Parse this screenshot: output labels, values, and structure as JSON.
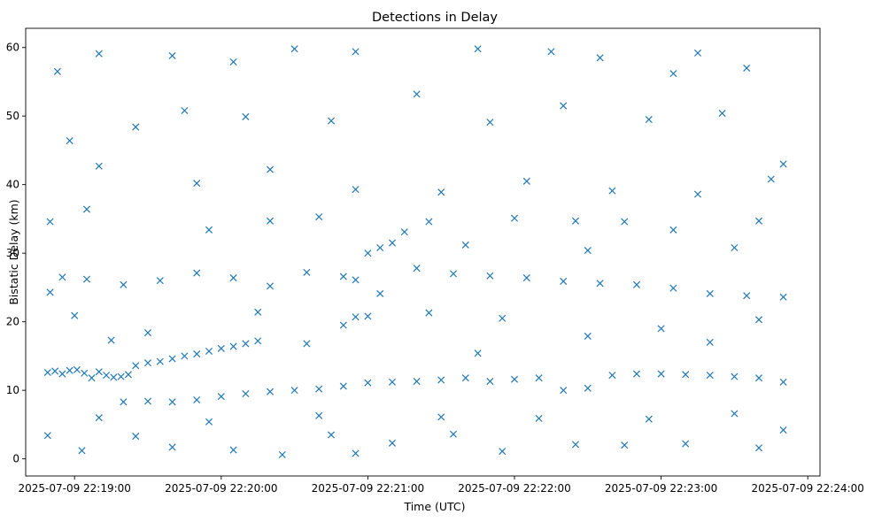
{
  "chart_data": {
    "type": "scatter",
    "title": "Detections in Delay",
    "xlabel": "Time (UTC)",
    "ylabel": "Bistatic Delay (km)",
    "x_is_time": true,
    "xlim": [
      "2025-07-09 22:18:40",
      "2025-07-09 22:24:05"
    ],
    "ylim": [
      -2.5,
      62.8
    ],
    "x_ticks": [
      {
        "value": "2025-07-09 22:19:00",
        "label": "2025-07-09 22:19:00"
      },
      {
        "value": "2025-07-09 22:20:00",
        "label": "2025-07-09 22:20:00"
      },
      {
        "value": "2025-07-09 22:21:00",
        "label": "2025-07-09 22:21:00"
      },
      {
        "value": "2025-07-09 22:22:00",
        "label": "2025-07-09 22:22:00"
      },
      {
        "value": "2025-07-09 22:23:00",
        "label": "2025-07-09 22:23:00"
      },
      {
        "value": "2025-07-09 22:24:00",
        "label": "2025-07-09 22:24:00"
      }
    ],
    "y_ticks": [
      0,
      10,
      20,
      30,
      40,
      50,
      60
    ],
    "marker": "x",
    "color": "#1f77b4",
    "grid": false,
    "legend": "none",
    "series": [
      {
        "name": "",
        "points": [
          [
            "2025-07-09 22:18:49",
            12.6
          ],
          [
            "2025-07-09 22:18:52",
            12.8
          ],
          [
            "2025-07-09 22:18:55",
            12.4
          ],
          [
            "2025-07-09 22:18:58",
            12.9
          ],
          [
            "2025-07-09 22:19:01",
            13.0
          ],
          [
            "2025-07-09 22:19:04",
            12.5
          ],
          [
            "2025-07-09 22:19:07",
            11.8
          ],
          [
            "2025-07-09 22:19:10",
            12.7
          ],
          [
            "2025-07-09 22:19:13",
            12.2
          ],
          [
            "2025-07-09 22:19:16",
            11.9
          ],
          [
            "2025-07-09 22:19:19",
            12.0
          ],
          [
            "2025-07-09 22:19:22",
            12.3
          ],
          [
            "2025-07-09 22:19:25",
            13.6
          ],
          [
            "2025-07-09 22:19:30",
            14.0
          ],
          [
            "2025-07-09 22:19:35",
            14.2
          ],
          [
            "2025-07-09 22:19:40",
            14.6
          ],
          [
            "2025-07-09 22:19:45",
            15.0
          ],
          [
            "2025-07-09 22:19:50",
            15.3
          ],
          [
            "2025-07-09 22:19:55",
            15.7
          ],
          [
            "2025-07-09 22:20:00",
            16.1
          ],
          [
            "2025-07-09 22:20:05",
            16.4
          ],
          [
            "2025-07-09 22:20:10",
            16.8
          ],
          [
            "2025-07-09 22:20:15",
            17.2
          ],
          [
            "2025-07-09 22:19:20",
            8.3
          ],
          [
            "2025-07-09 22:19:30",
            8.4
          ],
          [
            "2025-07-09 22:19:40",
            8.3
          ],
          [
            "2025-07-09 22:19:50",
            8.6
          ],
          [
            "2025-07-09 22:20:00",
            9.1
          ],
          [
            "2025-07-09 22:20:10",
            9.5
          ],
          [
            "2025-07-09 22:20:20",
            9.8
          ],
          [
            "2025-07-09 22:20:30",
            10.0
          ],
          [
            "2025-07-09 22:20:40",
            10.2
          ],
          [
            "2025-07-09 22:20:50",
            10.6
          ],
          [
            "2025-07-09 22:21:00",
            11.1
          ],
          [
            "2025-07-09 22:21:10",
            11.2
          ],
          [
            "2025-07-09 22:21:20",
            11.3
          ],
          [
            "2025-07-09 22:21:30",
            11.5
          ],
          [
            "2025-07-09 22:21:40",
            11.8
          ],
          [
            "2025-07-09 22:21:50",
            11.3
          ],
          [
            "2025-07-09 22:22:00",
            11.6
          ],
          [
            "2025-07-09 22:22:10",
            11.8
          ],
          [
            "2025-07-09 22:22:20",
            10.0
          ],
          [
            "2025-07-09 22:22:30",
            10.3
          ],
          [
            "2025-07-09 22:22:40",
            12.2
          ],
          [
            "2025-07-09 22:22:50",
            12.4
          ],
          [
            "2025-07-09 22:23:00",
            12.4
          ],
          [
            "2025-07-09 22:23:10",
            12.3
          ],
          [
            "2025-07-09 22:23:20",
            12.2
          ],
          [
            "2025-07-09 22:23:30",
            12.0
          ],
          [
            "2025-07-09 22:23:40",
            11.8
          ],
          [
            "2025-07-09 22:23:50",
            11.2
          ],
          [
            "2025-07-09 22:18:50",
            24.3
          ],
          [
            "2025-07-09 22:18:55",
            26.5
          ],
          [
            "2025-07-09 22:19:05",
            26.2
          ],
          [
            "2025-07-09 22:19:20",
            25.4
          ],
          [
            "2025-07-09 22:19:35",
            26.0
          ],
          [
            "2025-07-09 22:19:50",
            27.1
          ],
          [
            "2025-07-09 22:20:05",
            26.4
          ],
          [
            "2025-07-09 22:20:20",
            25.2
          ],
          [
            "2025-07-09 22:20:35",
            27.2
          ],
          [
            "2025-07-09 22:20:50",
            26.6
          ],
          [
            "2025-07-09 22:21:05",
            24.1
          ],
          [
            "2025-07-09 22:21:20",
            27.8
          ],
          [
            "2025-07-09 22:21:35",
            27.0
          ],
          [
            "2025-07-09 22:21:50",
            26.7
          ],
          [
            "2025-07-09 22:22:05",
            26.4
          ],
          [
            "2025-07-09 22:22:20",
            25.9
          ],
          [
            "2025-07-09 22:22:35",
            25.6
          ],
          [
            "2025-07-09 22:22:50",
            25.4
          ],
          [
            "2025-07-09 22:23:05",
            24.9
          ],
          [
            "2025-07-09 22:23:20",
            24.1
          ],
          [
            "2025-07-09 22:23:35",
            23.8
          ],
          [
            "2025-07-09 22:23:50",
            23.6
          ],
          [
            "2025-07-09 22:18:50",
            34.6
          ],
          [
            "2025-07-09 22:20:20",
            34.7
          ],
          [
            "2025-07-09 22:21:25",
            34.6
          ],
          [
            "2025-07-09 22:21:40",
            31.2
          ],
          [
            "2025-07-09 22:22:25",
            34.7
          ],
          [
            "2025-07-09 22:22:45",
            34.6
          ],
          [
            "2025-07-09 22:23:40",
            34.7
          ],
          [
            "2025-07-09 22:20:55",
            26.1
          ],
          [
            "2025-07-09 22:21:00",
            30.0
          ],
          [
            "2025-07-09 22:21:05",
            30.8
          ],
          [
            "2025-07-09 22:21:10",
            31.5
          ],
          [
            "2025-07-09 22:20:55",
            20.7
          ],
          [
            "2025-07-09 22:21:00",
            20.8
          ],
          [
            "2025-07-09 22:18:53",
            56.5
          ],
          [
            "2025-07-09 22:19:10",
            59.1
          ],
          [
            "2025-07-09 22:19:40",
            58.8
          ],
          [
            "2025-07-09 22:20:05",
            57.9
          ],
          [
            "2025-07-09 22:20:30",
            59.8
          ],
          [
            "2025-07-09 22:20:55",
            59.4
          ],
          [
            "2025-07-09 22:21:45",
            59.8
          ],
          [
            "2025-07-09 22:22:15",
            59.4
          ],
          [
            "2025-07-09 22:22:35",
            58.5
          ],
          [
            "2025-07-09 22:23:15",
            59.2
          ],
          [
            "2025-07-09 22:23:05",
            56.2
          ],
          [
            "2025-07-09 22:23:35",
            57.0
          ],
          [
            "2025-07-09 22:18:58",
            46.4
          ],
          [
            "2025-07-09 22:19:25",
            48.4
          ],
          [
            "2025-07-09 22:19:45",
            50.8
          ],
          [
            "2025-07-09 22:20:10",
            49.9
          ],
          [
            "2025-07-09 22:20:45",
            49.3
          ],
          [
            "2025-07-09 22:21:20",
            53.2
          ],
          [
            "2025-07-09 22:21:50",
            49.1
          ],
          [
            "2025-07-09 22:22:20",
            51.5
          ],
          [
            "2025-07-09 22:22:55",
            49.5
          ],
          [
            "2025-07-09 22:23:25",
            50.4
          ],
          [
            "2025-07-09 22:23:50",
            43.0
          ],
          [
            "2025-07-09 22:19:10",
            42.7
          ],
          [
            "2025-07-09 22:19:50",
            40.2
          ],
          [
            "2025-07-09 22:20:20",
            42.2
          ],
          [
            "2025-07-09 22:20:55",
            39.3
          ],
          [
            "2025-07-09 22:21:30",
            38.9
          ],
          [
            "2025-07-09 22:22:05",
            40.5
          ],
          [
            "2025-07-09 22:22:40",
            39.1
          ],
          [
            "2025-07-09 22:23:15",
            38.6
          ],
          [
            "2025-07-09 22:23:45",
            40.8
          ],
          [
            "2025-07-09 22:19:05",
            36.4
          ],
          [
            "2025-07-09 22:19:55",
            33.4
          ],
          [
            "2025-07-09 22:20:40",
            35.3
          ],
          [
            "2025-07-09 22:21:15",
            33.1
          ],
          [
            "2025-07-09 22:22:00",
            35.1
          ],
          [
            "2025-07-09 22:22:30",
            30.4
          ],
          [
            "2025-07-09 22:23:05",
            33.4
          ],
          [
            "2025-07-09 22:23:30",
            30.8
          ],
          [
            "2025-07-09 22:19:00",
            20.9
          ],
          [
            "2025-07-09 22:19:30",
            18.4
          ],
          [
            "2025-07-09 22:20:15",
            21.4
          ],
          [
            "2025-07-09 22:20:50",
            19.5
          ],
          [
            "2025-07-09 22:21:25",
            21.3
          ],
          [
            "2025-07-09 22:21:55",
            20.5
          ],
          [
            "2025-07-09 22:22:30",
            17.9
          ],
          [
            "2025-07-09 22:23:00",
            19.0
          ],
          [
            "2025-07-09 22:23:40",
            20.3
          ],
          [
            "2025-07-09 22:19:15",
            17.3
          ],
          [
            "2025-07-09 22:20:35",
            16.8
          ],
          [
            "2025-07-09 22:21:45",
            15.4
          ],
          [
            "2025-07-09 22:23:20",
            17.0
          ],
          [
            "2025-07-09 22:18:49",
            3.4
          ],
          [
            "2025-07-09 22:19:03",
            1.2
          ],
          [
            "2025-07-09 22:19:25",
            3.3
          ],
          [
            "2025-07-09 22:19:40",
            1.7
          ],
          [
            "2025-07-09 22:20:05",
            1.3
          ],
          [
            "2025-07-09 22:20:25",
            0.6
          ],
          [
            "2025-07-09 22:20:45",
            3.5
          ],
          [
            "2025-07-09 22:20:55",
            0.8
          ],
          [
            "2025-07-09 22:21:10",
            2.3
          ],
          [
            "2025-07-09 22:21:35",
            3.6
          ],
          [
            "2025-07-09 22:21:55",
            1.1
          ],
          [
            "2025-07-09 22:22:25",
            2.1
          ],
          [
            "2025-07-09 22:22:45",
            2.0
          ],
          [
            "2025-07-09 22:23:10",
            2.2
          ],
          [
            "2025-07-09 22:23:40",
            1.6
          ],
          [
            "2025-07-09 22:23:50",
            4.2
          ],
          [
            "2025-07-09 22:19:10",
            6.0
          ],
          [
            "2025-07-09 22:19:55",
            5.4
          ],
          [
            "2025-07-09 22:20:40",
            6.3
          ],
          [
            "2025-07-09 22:21:30",
            6.1
          ],
          [
            "2025-07-09 22:22:10",
            5.9
          ],
          [
            "2025-07-09 22:22:55",
            5.8
          ],
          [
            "2025-07-09 22:23:30",
            6.6
          ]
        ]
      }
    ]
  }
}
